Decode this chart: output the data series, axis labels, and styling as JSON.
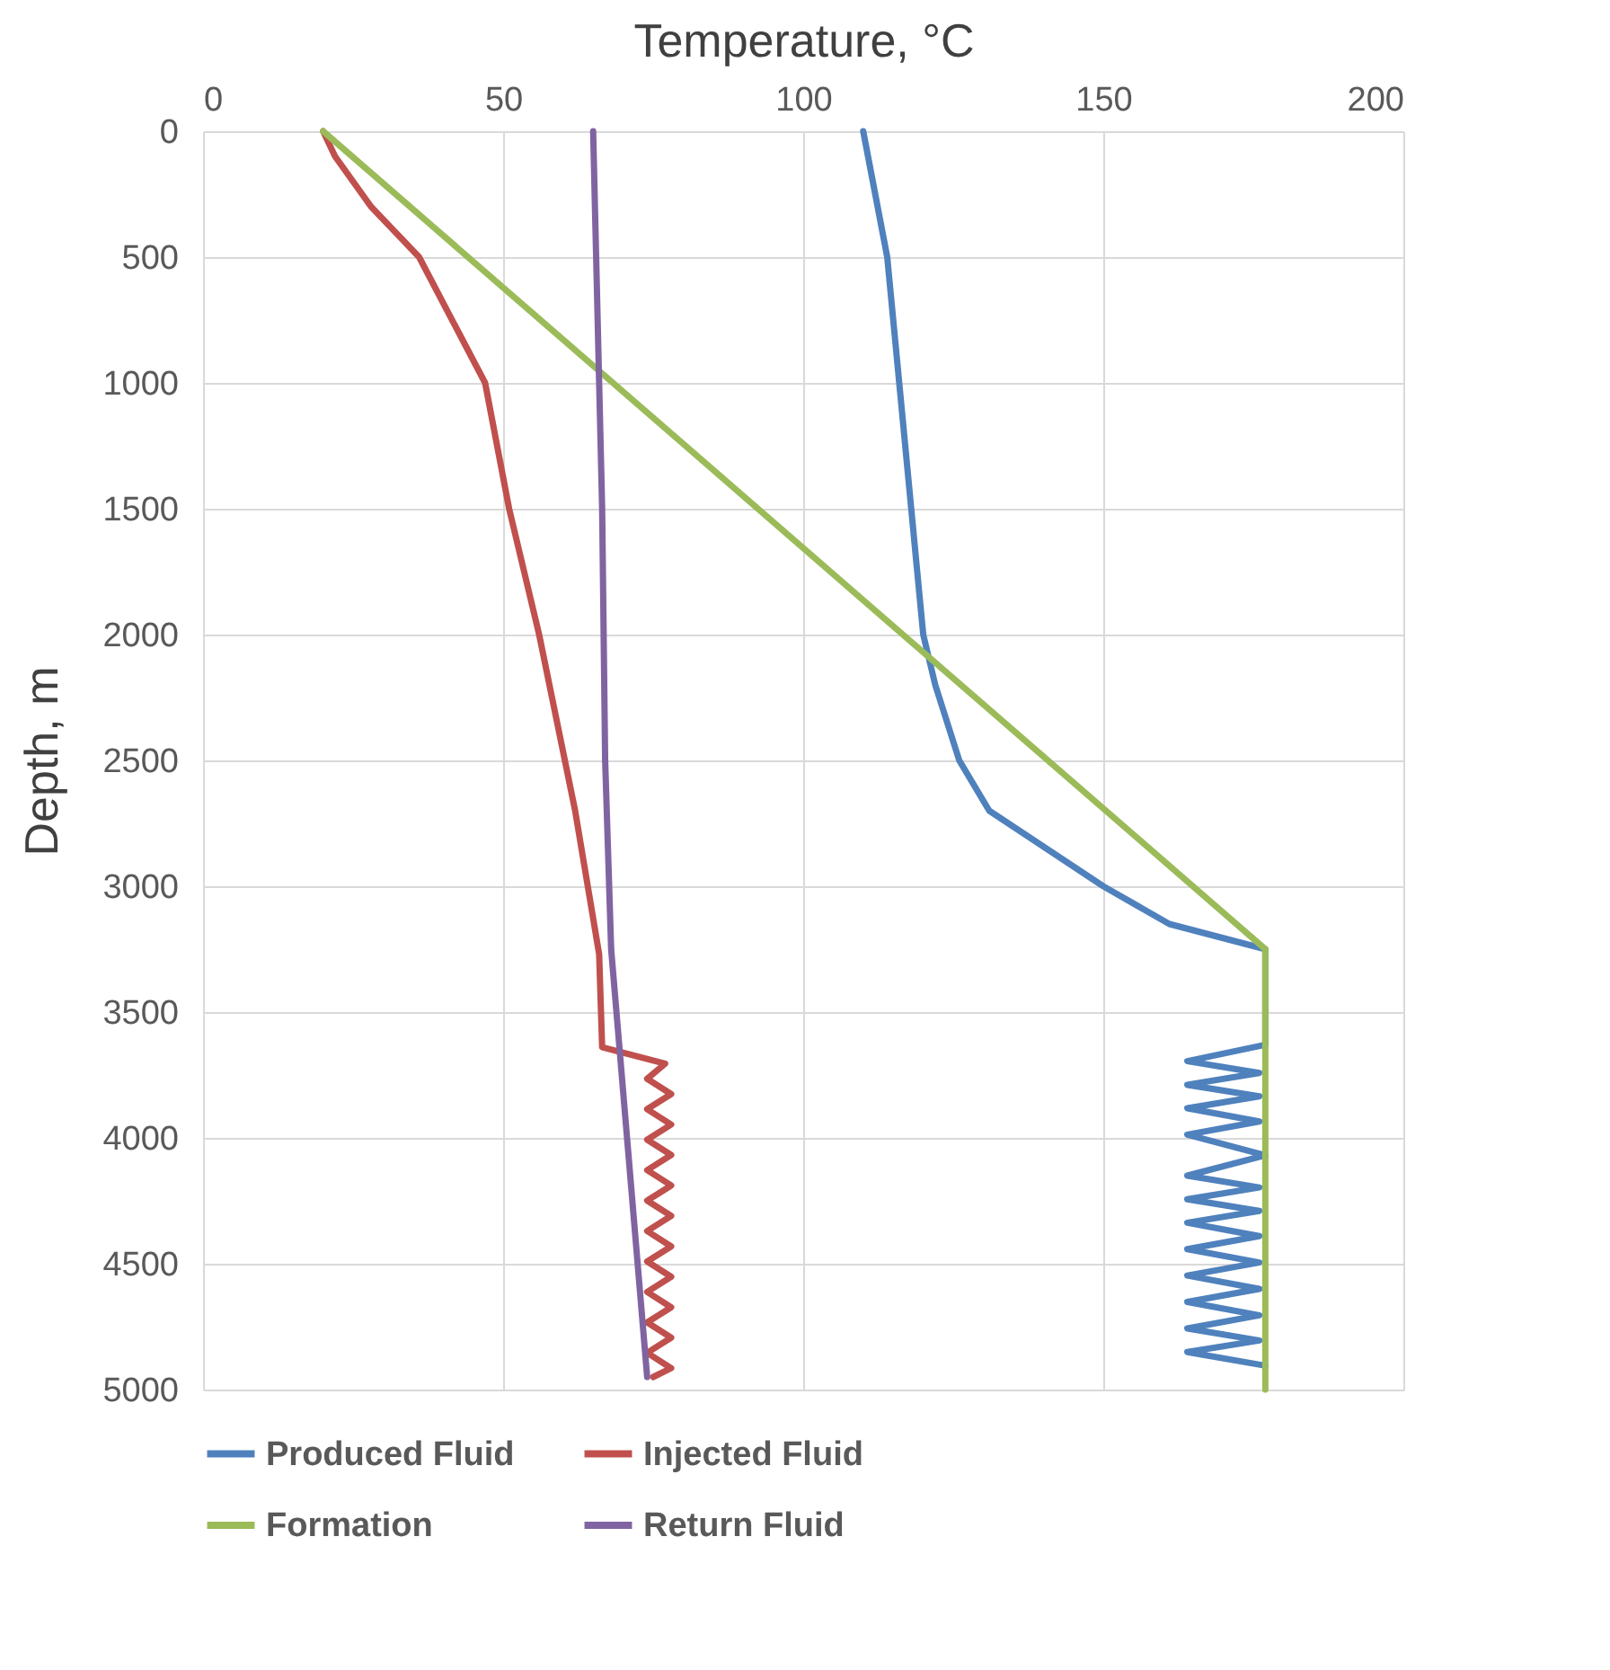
{
  "chart_data": {
    "type": "line",
    "xlabel": "Temperature, °C",
    "ylabel": "Depth, m",
    "xlim": [
      0,
      200
    ],
    "xticks": [
      0,
      50,
      100,
      150,
      200
    ],
    "ylim": [
      5000,
      0
    ],
    "yticks": [
      0,
      500,
      1000,
      1500,
      2000,
      2500,
      3000,
      3500,
      4000,
      4500,
      5000
    ],
    "grid": true,
    "legend": "bottom",
    "marker": "none",
    "line_style": "solid",
    "series": [
      {
        "name": "Produced Fluid",
        "color": "#4f81bd",
        "x": [
          110,
          114,
          116,
          118,
          120,
          122,
          126,
          131,
          150,
          161,
          177,
          177,
          164,
          176,
          164,
          176,
          164,
          176,
          164,
          177,
          164,
          176,
          164,
          176,
          164,
          176,
          164,
          176,
          164,
          176,
          164,
          176,
          164,
          176,
          164,
          177
        ],
        "values": [
          0,
          500,
          1000,
          1500,
          2000,
          2200,
          2500,
          2700,
          3000,
          3150,
          3250,
          3630,
          3695,
          3742,
          3789,
          3835,
          3882,
          3935,
          3987,
          4069,
          4150,
          4197,
          4244,
          4290,
          4337,
          4390,
          4442,
          4495,
          4547,
          4600,
          4652,
          4705,
          4757,
          4805,
          4851,
          4905
        ]
      },
      {
        "name": "Injected Fluid",
        "color": "#c0504d",
        "x": [
          20,
          22,
          28,
          36,
          47,
          51,
          56,
          62,
          66,
          66.5,
          77,
          74,
          78,
          74,
          78,
          74,
          78,
          74,
          78,
          74,
          78,
          74,
          78,
          74,
          78,
          74,
          78,
          74,
          78,
          74,
          78,
          75
        ],
        "values": [
          0,
          100,
          300,
          500,
          1000,
          1500,
          2000,
          2700,
          3270,
          3640,
          3705,
          3765,
          3826,
          3886,
          3947,
          4007,
          4068,
          4128,
          4189,
          4249,
          4310,
          4370,
          4431,
          4491,
          4552,
          4612,
          4673,
          4733,
          4794,
          4854,
          4915,
          4950
        ]
      },
      {
        "name": "Formation",
        "color": "#9bbb59",
        "x": [
          20,
          177,
          177
        ],
        "values": [
          0,
          3250,
          5000
        ]
      },
      {
        "name": "Return Fluid",
        "color": "#8064a2",
        "x": [
          65,
          66.5,
          67,
          68,
          74
        ],
        "values": [
          0,
          1500,
          2500,
          3250,
          4950
        ]
      }
    ]
  }
}
